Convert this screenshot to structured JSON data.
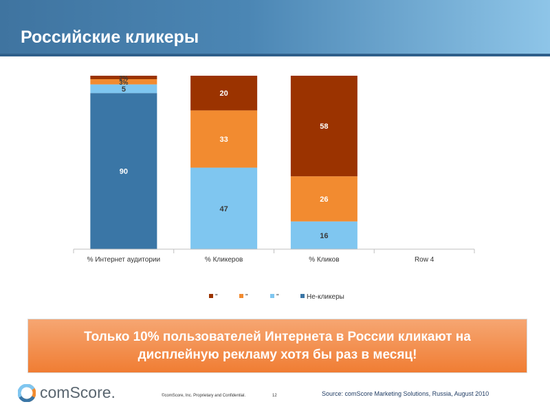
{
  "slide": {
    "title": "Российские кликеры",
    "banner": "Только 10% пользователей Интернета в России кликают на дисплейную рекламу хотя бы раз в месяц!",
    "footer": {
      "logo_text": "comScore.",
      "copyright": "©comScore, Inc. Proprietary and Confidential.",
      "page_number": "12",
      "source": "Source: comScore Marketing Solutions, Russia, August 2010"
    }
  },
  "chart_data": {
    "type": "bar",
    "stacked": true,
    "categories": [
      "% Интернет аудитории",
      "% Кликеров",
      "% Кликов",
      "Row 4"
    ],
    "series": [
      {
        "name": "Не-кликеры",
        "color": "#3a76a6",
        "values": [
          90,
          0,
          0,
          0
        ],
        "labels": [
          "90",
          "",
          "",
          ""
        ],
        "label_color": "#ffffff"
      },
      {
        "name": "\"",
        "color": "#7fc6f0",
        "values": [
          5,
          47,
          16,
          0
        ],
        "labels": [
          "5",
          "47",
          "16",
          ""
        ],
        "label_color": "#3a3a3a"
      },
      {
        "name": "\"",
        "color": "#f28b30",
        "values": [
          3,
          33,
          26,
          0
        ],
        "labels": [
          "3%",
          "33",
          "26",
          ""
        ],
        "label_color": "#ffffff"
      },
      {
        "name": "\"",
        "color": "#9b3300",
        "values": [
          2,
          20,
          58,
          0
        ],
        "labels": [
          "2%",
          "20",
          "58",
          ""
        ],
        "label_color": "#ffffff"
      }
    ],
    "ylim": [
      0,
      100
    ],
    "legend_position": "bottom",
    "legend_order": [
      3,
      2,
      1,
      0
    ]
  }
}
